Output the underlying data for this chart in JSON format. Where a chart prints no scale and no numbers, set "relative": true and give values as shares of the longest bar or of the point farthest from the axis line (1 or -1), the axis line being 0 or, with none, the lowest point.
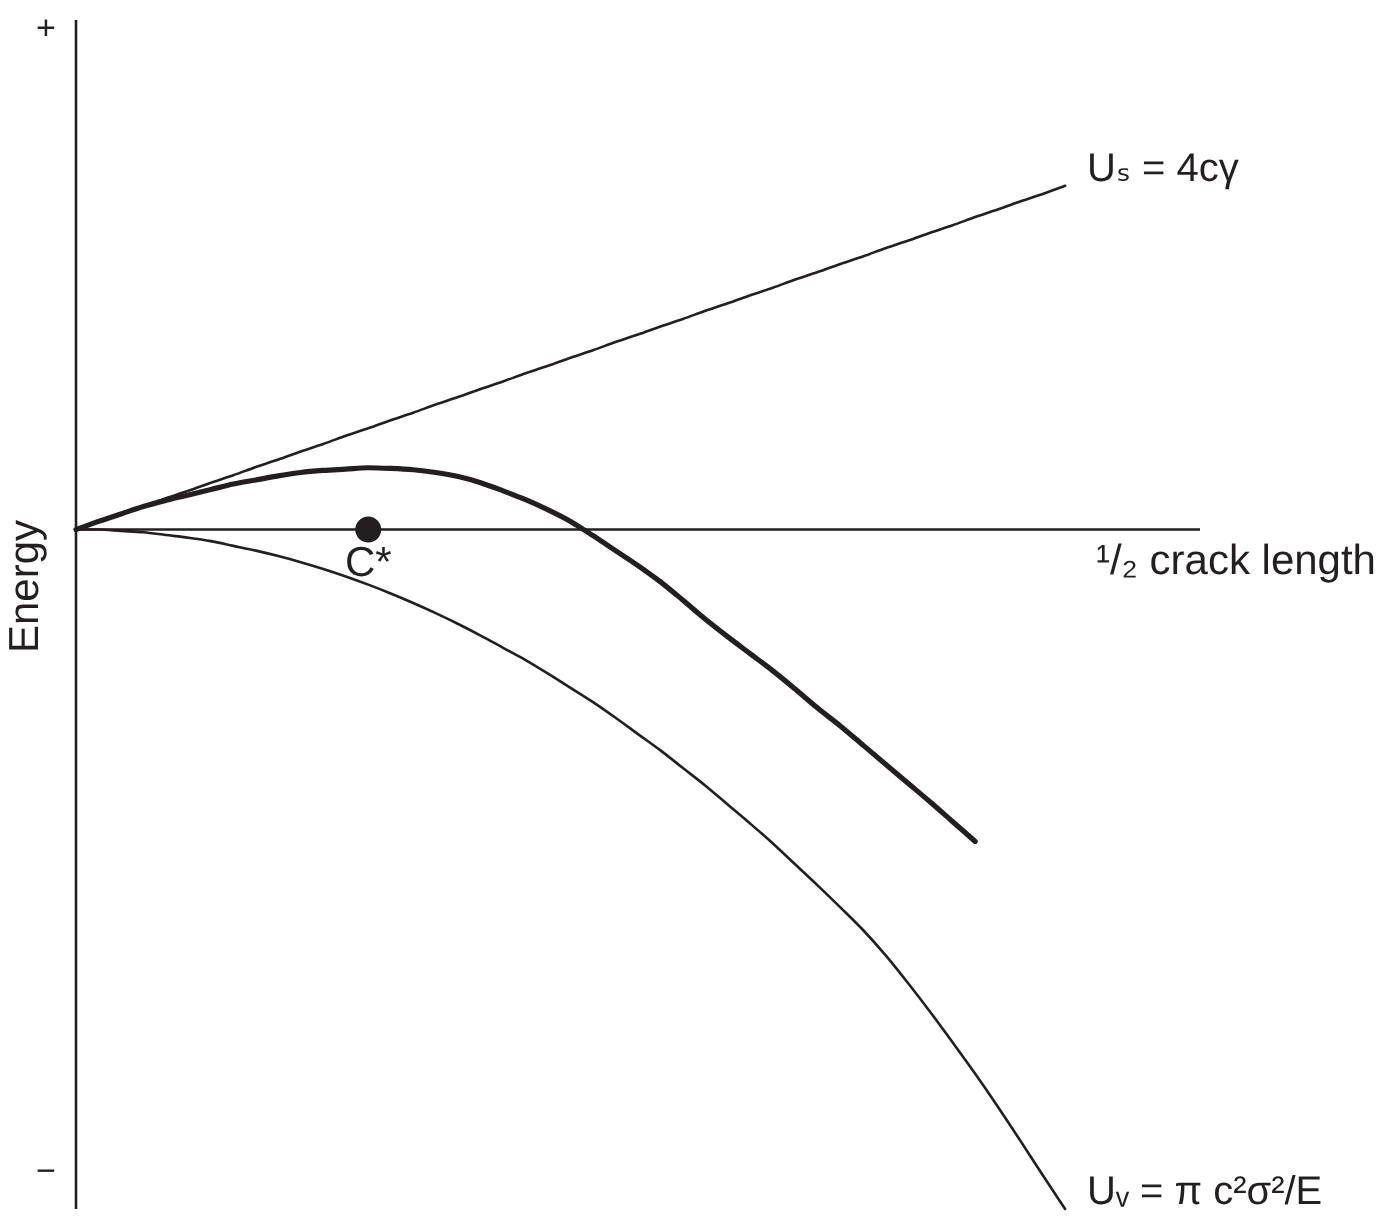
{
  "chart_data": {
    "type": "line",
    "relative": true,
    "xlabel": "¹/₂ crack length",
    "ylabel": "Energy",
    "annotations": [
      "+",
      "−",
      "C*"
    ],
    "marker": "none",
    "line_style": "solid",
    "grid": false,
    "legend": false,
    "categories": [
      null,
      null,
      null,
      null,
      null,
      null,
      null,
      null,
      null,
      null,
      null,
      null,
      null,
      null,
      null,
      null,
      null,
      null,
      null,
      null,
      null,
      null,
      null,
      null,
      null,
      null,
      null,
      null,
      null,
      null,
      null,
      null,
      null,
      null,
      null,
      null,
      null,
      null,
      null,
      null,
      null,
      null,
      null,
      null,
      null,
      null,
      null,
      null,
      null,
      null,
      null
    ],
    "series": [
      {
        "name": "Uₛ = 4cγ",
        "color": "#231f20",
        "values": [
          0,
          0.012,
          0.023,
          0.034,
          0.046,
          0.057,
          0.069,
          0.08,
          0.092,
          0.103,
          0.115,
          0.126,
          0.138,
          0.149,
          0.161,
          0.172,
          0.184,
          0.195,
          0.207,
          0.218,
          0.23,
          0.241,
          0.253,
          0.264,
          0.276,
          0.287,
          0.299,
          0.31,
          0.322,
          0.333,
          0.345,
          0.356,
          0.368,
          0.379,
          0.391,
          0.402,
          0.414,
          0.425,
          0.437,
          0.448,
          0.46,
          0.471,
          0.483,
          0.494,
          0.506,
          null,
          null,
          null,
          null,
          null,
          null
        ]
      },
      {
        "color": "#231f20",
        "values": [
          0,
          0.012,
          0.023,
          0.034,
          0.043,
          0.051,
          0.059,
          0.067,
          0.073,
          0.079,
          0.084,
          0.087,
          0.089,
          0.091,
          0.09,
          0.088,
          0.084,
          0.078,
          0.069,
          0.057,
          0.044,
          0.029,
          0.012,
          -0.009,
          -0.031,
          -0.053,
          -0.077,
          -0.104,
          -0.132,
          -0.158,
          -0.183,
          -0.208,
          -0.235,
          -0.263,
          -0.289,
          -0.317,
          -0.345,
          -0.373,
          -0.401,
          -0.43,
          -0.459,
          null,
          null,
          null,
          null,
          null,
          null,
          null,
          null,
          null,
          null
        ]
      },
      {
        "name": "Uᵥ = π c²σ²/E",
        "color": "#231f20",
        "values": [
          0,
          0,
          -0.002,
          -0.004,
          -0.008,
          -0.012,
          -0.017,
          -0.024,
          -0.031,
          -0.039,
          -0.048,
          -0.058,
          -0.069,
          -0.081,
          -0.094,
          -0.108,
          -0.123,
          -0.139,
          -0.156,
          -0.174,
          -0.192,
          -0.212,
          -0.233,
          -0.254,
          -0.277,
          -0.301,
          -0.325,
          -0.351,
          -0.377,
          -0.405,
          -0.433,
          -0.462,
          -0.493,
          -0.524,
          -0.556,
          -0.589,
          -0.626,
          -0.667,
          -0.71,
          -0.755,
          -0.801,
          -0.849,
          -0.899,
          -0.95,
          -1,
          null,
          null,
          null,
          null,
          null,
          null
        ]
      },
      {
        "marker": "circle",
        "color": "#231f20",
        "values": [
          null,
          null,
          null,
          null,
          null,
          null,
          null,
          null,
          null,
          null,
          null,
          null,
          null,
          0,
          null,
          null,
          null,
          null,
          null,
          null,
          null,
          null,
          null,
          null,
          null,
          null,
          null,
          null,
          null,
          null,
          null,
          null,
          null,
          null,
          null,
          null,
          null,
          null,
          null,
          null,
          null,
          null,
          null,
          null,
          null,
          null,
          null,
          null,
          null,
          null,
          null
        ]
      }
    ]
  }
}
